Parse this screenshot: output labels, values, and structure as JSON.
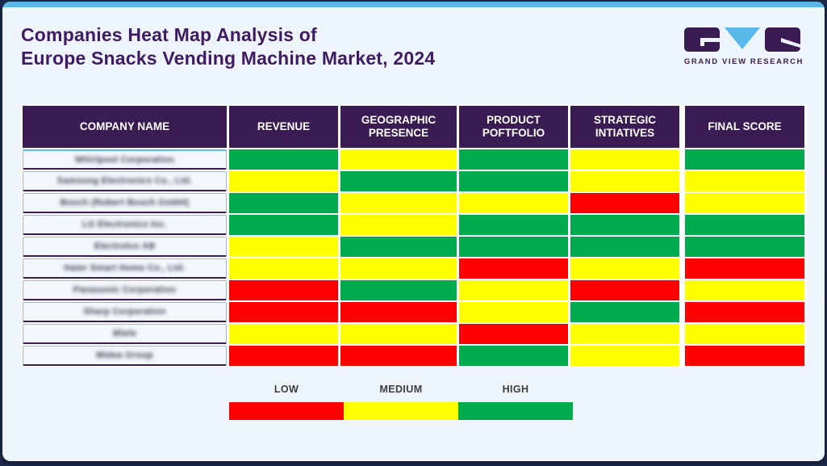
{
  "header": {
    "title_line1": "Companies Heat Map Analysis of",
    "title_line2": "Europe Snacks Vending Machine Market, 2024"
  },
  "logo": {
    "text": "GRAND VIEW RESEARCH",
    "mark_purple": "#3A1B52",
    "mark_blue": "#57B8E9"
  },
  "table": {
    "columns": [
      "COMPANY NAME",
      "REVENUE",
      "GEOGRAPHIC PRESENCE",
      "PRODUCT POFTFOLIO",
      "STRATEGIC INTIATIVES",
      "FINAL SCORE"
    ],
    "rows": [
      {
        "company": "Whirlpool Corporation",
        "scores": [
          "high",
          "medium",
          "high",
          "medium",
          "high"
        ]
      },
      {
        "company": "Samsung Electronics Co., Ltd.",
        "scores": [
          "medium",
          "high",
          "high",
          "medium",
          "medium"
        ]
      },
      {
        "company": "Bosch (Robert Bosch GmbH)",
        "scores": [
          "high",
          "medium",
          "medium",
          "low",
          "medium"
        ]
      },
      {
        "company": "LG Electronics Inc.",
        "scores": [
          "high",
          "medium",
          "high",
          "high",
          "high"
        ]
      },
      {
        "company": "Electrolux AB",
        "scores": [
          "medium",
          "high",
          "high",
          "high",
          "high"
        ]
      },
      {
        "company": "Haier Smart Home Co., Ltd.",
        "scores": [
          "medium",
          "medium",
          "low",
          "medium",
          "low"
        ]
      },
      {
        "company": "Panasonic Corporation",
        "scores": [
          "low",
          "high",
          "medium",
          "low",
          "medium"
        ]
      },
      {
        "company": "Sharp Corporation",
        "scores": [
          "low",
          "low",
          "medium",
          "high",
          "low"
        ]
      },
      {
        "company": "Miele",
        "scores": [
          "medium",
          "medium",
          "low",
          "medium",
          "medium"
        ]
      },
      {
        "company": "Midea Group",
        "scores": [
          "low",
          "low",
          "high",
          "medium",
          "low"
        ]
      }
    ]
  },
  "colors": {
    "low": "#FF0000",
    "medium": "#FFFF00",
    "high": "#00AB4E",
    "header_bg": "#3A1B52",
    "accent_blue": "#57B8E9",
    "card_bg": "#EDF5FB",
    "page_bg": "#1C2A4A",
    "title_purple": "#3F1B63"
  },
  "legend": {
    "items": [
      {
        "label": "LOW",
        "level": "low"
      },
      {
        "label": "MEDIUM",
        "level": "medium"
      },
      {
        "label": "HIGH",
        "level": "high"
      }
    ]
  },
  "chart_data": {
    "type": "heatmap",
    "title": "Companies Heat Map Analysis of Europe Snacks Vending Machine Market, 2024",
    "columns": [
      "Revenue",
      "Geographic Presence",
      "Product Poftfolio",
      "Strategic Intiatives",
      "Final Score"
    ],
    "rows": [
      "Whirlpool Corporation",
      "Samsung Electronics Co., Ltd.",
      "Bosch (Robert Bosch GmbH)",
      "LG Electronics Inc.",
      "Electrolux AB",
      "Haier Smart Home Co., Ltd.",
      "Panasonic Corporation",
      "Sharp Corporation",
      "Miele",
      "Midea Group"
    ],
    "values": [
      [
        "High",
        "Medium",
        "High",
        "Medium",
        "High"
      ],
      [
        "Medium",
        "High",
        "High",
        "Medium",
        "Medium"
      ],
      [
        "High",
        "Medium",
        "Medium",
        "Low",
        "Medium"
      ],
      [
        "High",
        "Medium",
        "High",
        "High",
        "High"
      ],
      [
        "Medium",
        "High",
        "High",
        "High",
        "High"
      ],
      [
        "Medium",
        "Medium",
        "Low",
        "Medium",
        "Low"
      ],
      [
        "Low",
        "High",
        "Medium",
        "Low",
        "Medium"
      ],
      [
        "Low",
        "Low",
        "Medium",
        "High",
        "Low"
      ],
      [
        "Medium",
        "Medium",
        "Low",
        "Medium",
        "Medium"
      ],
      [
        "Low",
        "Low",
        "High",
        "Medium",
        "Low"
      ]
    ],
    "scale": {
      "Low": "#FF0000",
      "Medium": "#FFFF00",
      "High": "#00AB4E"
    },
    "legend_position": "bottom",
    "legend_entries": [
      "LOW",
      "MEDIUM",
      "HIGH"
    ]
  }
}
